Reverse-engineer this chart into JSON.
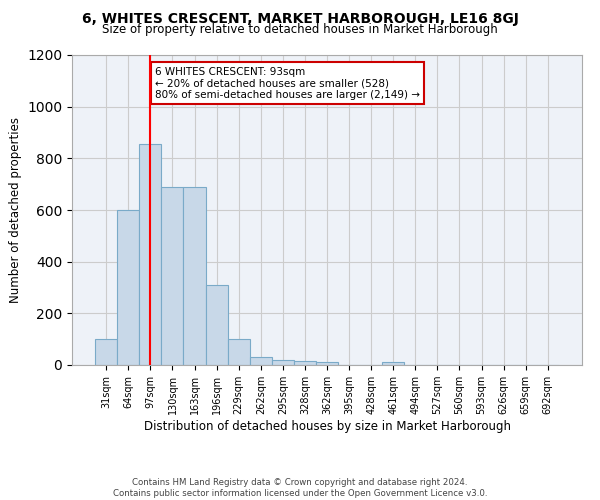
{
  "title": "6, WHITES CRESCENT, MARKET HARBOROUGH, LE16 8GJ",
  "subtitle": "Size of property relative to detached houses in Market Harborough",
  "xlabel": "Distribution of detached houses by size in Market Harborough",
  "ylabel": "Number of detached properties",
  "footer_line1": "Contains HM Land Registry data © Crown copyright and database right 2024.",
  "footer_line2": "Contains public sector information licensed under the Open Government Licence v3.0.",
  "categories": [
    "31sqm",
    "64sqm",
    "97sqm",
    "130sqm",
    "163sqm",
    "196sqm",
    "229sqm",
    "262sqm",
    "295sqm",
    "328sqm",
    "362sqm",
    "395sqm",
    "428sqm",
    "461sqm",
    "494sqm",
    "527sqm",
    "560sqm",
    "593sqm",
    "626sqm",
    "659sqm",
    "692sqm"
  ],
  "values": [
    100,
    600,
    855,
    690,
    690,
    310,
    100,
    30,
    20,
    15,
    10,
    0,
    0,
    10,
    0,
    0,
    0,
    0,
    0,
    0,
    0
  ],
  "bar_color": "#c8d8e8",
  "bar_edge_color": "#7aaac8",
  "grid_color": "#cccccc",
  "bg_color": "#eef2f8",
  "annotation_box_color": "#cc0000",
  "annotation_text": "6 WHITES CRESCENT: 93sqm\n← 20% of detached houses are smaller (528)\n80% of semi-detached houses are larger (2,149) →",
  "red_line_x": 2,
  "ylim": [
    0,
    1200
  ],
  "yticks": [
    0,
    200,
    400,
    600,
    800,
    1000,
    1200
  ]
}
